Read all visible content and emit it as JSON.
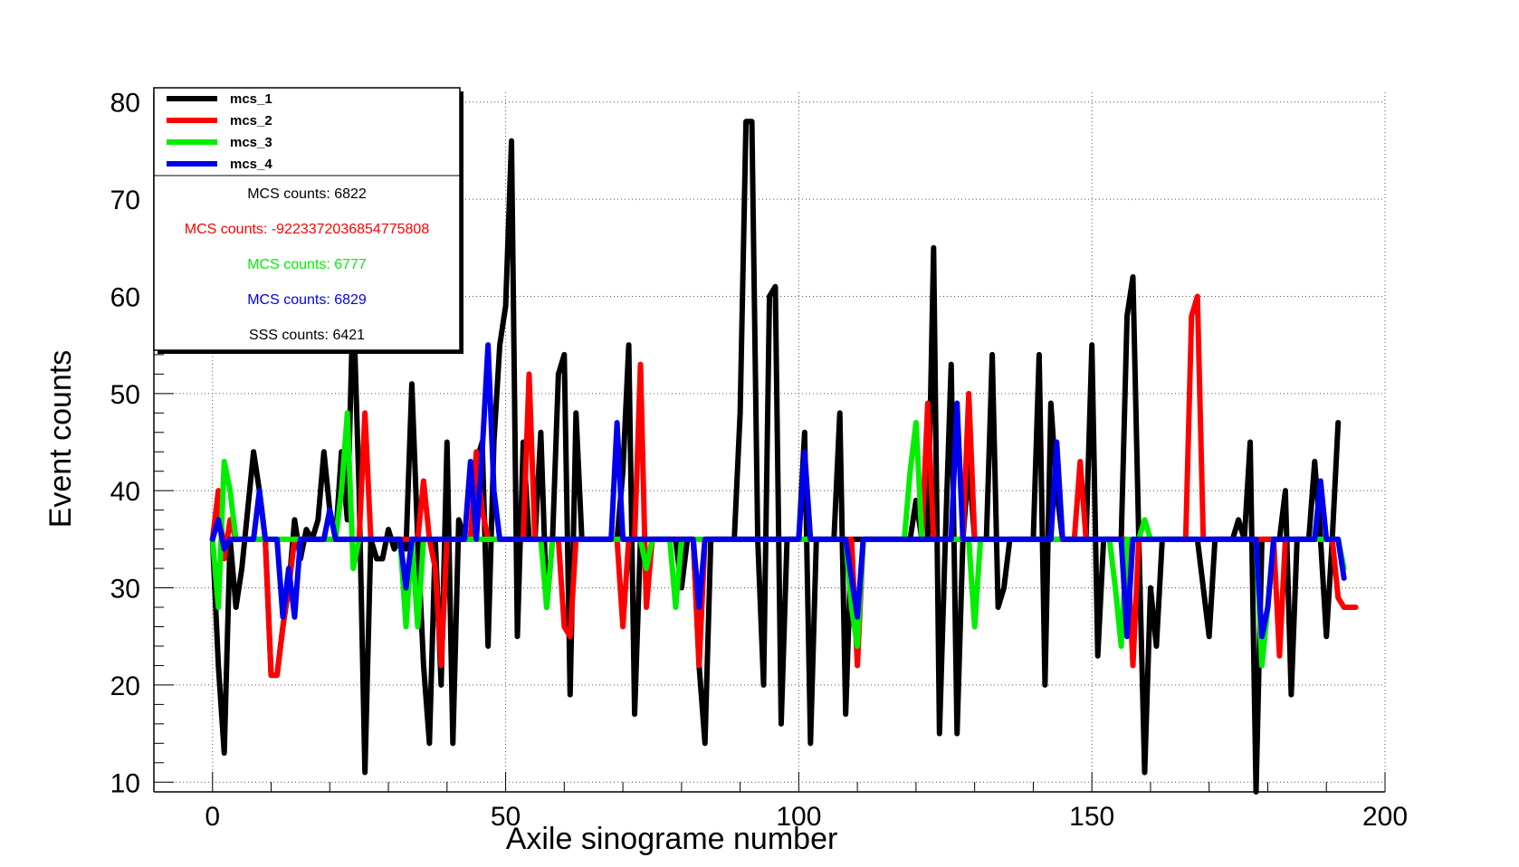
{
  "chart_data": {
    "type": "line",
    "title": "",
    "xlabel": "Axile sinograme number",
    "ylabel": "Event counts",
    "xlim": [
      -10,
      200
    ],
    "ylim": [
      9,
      81
    ],
    "x_ticks": [
      0,
      50,
      100,
      150,
      200
    ],
    "y_ticks": [
      10,
      20,
      30,
      40,
      50,
      60,
      70,
      80
    ],
    "grid": true,
    "legend_position": "top-left",
    "series": [
      {
        "name": "mcs_1",
        "color": "#000000",
        "values": [
          35,
          22,
          13,
          35,
          28,
          32,
          38,
          44,
          40,
          35,
          21,
          21,
          26,
          30,
          37,
          33,
          36,
          35,
          37,
          44,
          38,
          35,
          44,
          37,
          60,
          40,
          11,
          35,
          33,
          33,
          36,
          34,
          35,
          34,
          51,
          35,
          22,
          14,
          35,
          20,
          45,
          14,
          37,
          35,
          35,
          43,
          45,
          24,
          45,
          55,
          59,
          76,
          25,
          45,
          35,
          35,
          46,
          28,
          35,
          52,
          54,
          19,
          48,
          35,
          35,
          35,
          35,
          35,
          35,
          35,
          42,
          55,
          17,
          35,
          35,
          35,
          35,
          35,
          35,
          35,
          30,
          35,
          35,
          22,
          14,
          35,
          35,
          35,
          35,
          35,
          48,
          78,
          78,
          35,
          20,
          60,
          61,
          16,
          35,
          35,
          35,
          46,
          14,
          35,
          35,
          35,
          35,
          48,
          17,
          35,
          35,
          35,
          35,
          35,
          35,
          35,
          35,
          35,
          35,
          35,
          39,
          35,
          35,
          65,
          15,
          35,
          53,
          15,
          35,
          43,
          35,
          35,
          35,
          54,
          28,
          30,
          35,
          35,
          35,
          35,
          35,
          54,
          20,
          49,
          40,
          35,
          35,
          35,
          35,
          35,
          55,
          23,
          35,
          35,
          35,
          35,
          58,
          62,
          35,
          11,
          30,
          24,
          35,
          35,
          35,
          35,
          35,
          35,
          35,
          30,
          25,
          35,
          35,
          35,
          35,
          37,
          35,
          45,
          9,
          35,
          35,
          35,
          35,
          40,
          19,
          35,
          35,
          35,
          43,
          35,
          25,
          35,
          47
        ]
      },
      {
        "name": "mcs_2",
        "color": "#ff0000",
        "values": [
          35,
          40,
          33,
          37,
          35,
          35,
          35,
          35,
          35,
          35,
          21,
          21,
          26,
          30,
          35,
          35,
          35,
          35,
          35,
          35,
          35,
          35,
          35,
          35,
          35,
          35,
          48,
          35,
          35,
          35,
          35,
          35,
          35,
          35,
          35,
          35,
          41,
          35,
          32,
          22,
          35,
          35,
          35,
          35,
          35,
          44,
          38,
          35,
          35,
          35,
          35,
          35,
          35,
          35,
          52,
          35,
          35,
          35,
          35,
          35,
          26,
          25,
          35,
          35,
          35,
          35,
          35,
          35,
          35,
          35,
          26,
          35,
          35,
          53,
          28,
          35,
          35,
          35,
          35,
          35,
          35,
          35,
          35,
          22,
          35,
          35,
          35,
          35,
          35,
          35,
          35,
          35,
          35,
          35,
          35,
          35,
          35,
          35,
          35,
          35,
          35,
          35,
          35,
          35,
          35,
          35,
          35,
          35,
          35,
          35,
          22,
          35,
          35,
          35,
          35,
          35,
          35,
          35,
          35,
          35,
          35,
          35,
          49,
          35,
          35,
          35,
          35,
          35,
          35,
          50,
          35,
          35,
          35,
          35,
          35,
          35,
          35,
          35,
          35,
          35,
          35,
          35,
          35,
          35,
          35,
          35,
          35,
          35,
          43,
          35,
          35,
          35,
          35,
          35,
          35,
          35,
          35,
          22,
          35,
          35,
          35,
          35,
          35,
          35,
          35,
          35,
          35,
          58,
          60,
          35,
          35,
          35,
          35,
          35,
          35,
          35,
          35,
          35,
          35,
          35,
          35,
          35,
          23,
          35,
          35,
          35,
          35,
          35,
          35,
          35,
          35,
          35,
          29,
          28,
          28,
          28
        ]
      },
      {
        "name": "mcs_3",
        "color": "#00ee00",
        "values": [
          35,
          28,
          43,
          40,
          35,
          35,
          35,
          35,
          35,
          35,
          35,
          35,
          35,
          35,
          35,
          35,
          35,
          35,
          35,
          35,
          35,
          35,
          40,
          48,
          32,
          35,
          35,
          35,
          35,
          35,
          35,
          35,
          35,
          26,
          35,
          26,
          35,
          35,
          35,
          35,
          35,
          35,
          35,
          35,
          35,
          35,
          35,
          35,
          35,
          35,
          35,
          35,
          35,
          35,
          35,
          35,
          35,
          28,
          35,
          35,
          35,
          35,
          35,
          35,
          35,
          35,
          35,
          35,
          35,
          35,
          35,
          35,
          35,
          35,
          32,
          35,
          35,
          35,
          35,
          28,
          35,
          35,
          35,
          35,
          35,
          35,
          35,
          35,
          35,
          35,
          35,
          35,
          35,
          35,
          35,
          35,
          35,
          35,
          35,
          35,
          35,
          35,
          35,
          35,
          35,
          35,
          35,
          35,
          35,
          28,
          24,
          35,
          35,
          35,
          35,
          35,
          35,
          35,
          35,
          42,
          47,
          35,
          35,
          35,
          35,
          35,
          35,
          35,
          35,
          35,
          26,
          35,
          35,
          35,
          35,
          35,
          35,
          35,
          35,
          35,
          35,
          35,
          35,
          35,
          35,
          35,
          35,
          35,
          35,
          35,
          35,
          35,
          35,
          35,
          30,
          24,
          35,
          35,
          35,
          37,
          35,
          35,
          35,
          35,
          35,
          35,
          35,
          35,
          35,
          35,
          35,
          35,
          35,
          35,
          35,
          35,
          35,
          35,
          35,
          22,
          28,
          35,
          35,
          35,
          35,
          35,
          35,
          35,
          35,
          35,
          35,
          35,
          35,
          32
        ]
      },
      {
        "name": "mcs_4",
        "color": "#0000ee",
        "values": [
          35,
          37,
          34,
          35,
          35,
          35,
          35,
          35,
          40,
          35,
          35,
          35,
          27,
          32,
          27,
          35,
          35,
          35,
          35,
          35,
          38,
          35,
          35,
          35,
          35,
          35,
          35,
          35,
          35,
          35,
          35,
          35,
          35,
          30,
          35,
          35,
          35,
          35,
          35,
          35,
          35,
          35,
          35,
          35,
          43,
          35,
          44,
          55,
          40,
          35,
          35,
          35,
          35,
          35,
          35,
          35,
          35,
          35,
          35,
          35,
          35,
          35,
          35,
          35,
          35,
          35,
          35,
          35,
          35,
          47,
          35,
          35,
          35,
          35,
          35,
          35,
          35,
          35,
          35,
          35,
          35,
          35,
          35,
          28,
          35,
          35,
          35,
          35,
          35,
          35,
          35,
          35,
          35,
          35,
          35,
          35,
          35,
          35,
          35,
          35,
          35,
          44,
          35,
          35,
          35,
          35,
          35,
          35,
          35,
          31,
          27,
          35,
          35,
          35,
          35,
          35,
          35,
          35,
          35,
          35,
          35,
          35,
          35,
          35,
          35,
          35,
          35,
          49,
          35,
          35,
          35,
          35,
          35,
          35,
          35,
          35,
          35,
          35,
          35,
          35,
          35,
          35,
          35,
          35,
          45,
          35,
          35,
          35,
          35,
          35,
          35,
          35,
          35,
          35,
          35,
          35,
          25,
          35,
          35,
          35,
          35,
          35,
          35,
          35,
          35,
          35,
          35,
          35,
          35,
          35,
          35,
          35,
          35,
          35,
          35,
          35,
          35,
          35,
          35,
          25,
          28,
          35,
          35,
          35,
          35,
          35,
          35,
          35,
          35,
          41,
          35,
          35,
          35,
          31
        ]
      }
    ]
  },
  "legend": {
    "notes": [
      {
        "text": "MCS counts: 6822",
        "color": "#000000"
      },
      {
        "text": "MCS counts: -9223372036854775808",
        "color": "#ff0000"
      },
      {
        "text": "MCS counts: 6777",
        "color": "#00ee00"
      },
      {
        "text": "MCS counts: 6829",
        "color": "#0000ee"
      },
      {
        "text": "SSS counts: 6421",
        "color": "#000000"
      }
    ]
  }
}
